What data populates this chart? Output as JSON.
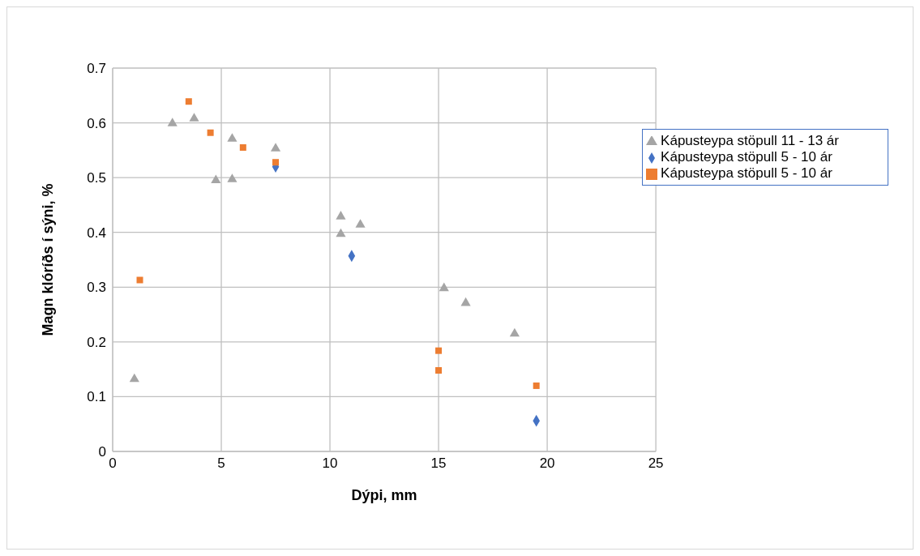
{
  "chart_data": {
    "type": "scatter",
    "xlabel": "Dýpi, mm",
    "ylabel": "Magn klóríðs í sýni, %",
    "xlim": [
      0,
      25
    ],
    "xticks": [
      0,
      5,
      10,
      15,
      20,
      25
    ],
    "ylim": [
      0,
      0.7
    ],
    "yticks": [
      0,
      0.1,
      0.2,
      0.3,
      0.4,
      0.5,
      0.6,
      0.7
    ],
    "grid": true,
    "legend": "top right",
    "series": [
      {
        "name": "Kápusteypa stöpull 11 - 13 ár",
        "color": "#a5a5a5",
        "marker": "triangle",
        "x": [
          1,
          2.75,
          3.75,
          4.75,
          5.5,
          5.5,
          7.5,
          10.5,
          10.5,
          11.4,
          15.25,
          16.25,
          18.5
        ],
        "values": [
          0.132,
          0.599,
          0.608,
          0.495,
          0.571,
          0.497,
          0.553,
          0.429,
          0.397,
          0.414,
          0.298,
          0.271,
          0.215
        ]
      },
      {
        "name": "Kápusteypa stöpull 5 - 10 ár",
        "color": "#4472c4",
        "marker": "diamond",
        "x": [
          7.5,
          11,
          15,
          19.5
        ],
        "values": [
          0.52,
          0.357,
          null,
          0.056
        ]
      },
      {
        "name": "Kápusteypa stöpull 5 - 10 ár",
        "color": "#ed7d31",
        "marker": "square",
        "x": [
          1.25,
          3.5,
          4.5,
          6,
          7.5,
          15,
          15,
          19.5
        ],
        "values": [
          0.313,
          0.639,
          0.582,
          0.555,
          0.528,
          0.184,
          0.148,
          0.12
        ]
      }
    ]
  }
}
